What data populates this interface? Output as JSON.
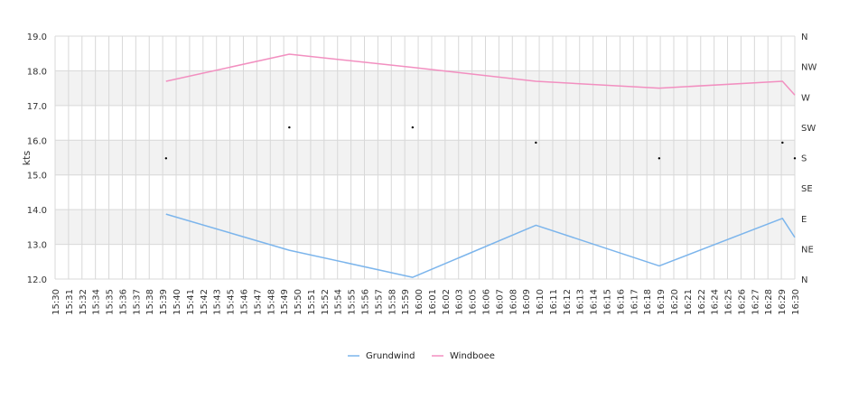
{
  "chart_data": {
    "type": "line",
    "ylabel": "kts",
    "ylim": [
      12,
      19
    ],
    "y_ticks": [
      "12.0",
      "13.0",
      "14.0",
      "15.0",
      "16.0",
      "17.0",
      "18.0",
      "19.0"
    ],
    "y2_labels": [
      "N",
      "NE",
      "E",
      "SE",
      "S",
      "SW",
      "W",
      "NW",
      "N"
    ],
    "x_tick_labels": [
      "15:30",
      "15:31",
      "15:32",
      "15:34",
      "15:35",
      "15:36",
      "15:37",
      "15:38",
      "15:39",
      "15:40",
      "15:41",
      "15:42",
      "15:43",
      "15:45",
      "15:46",
      "15:47",
      "15:48",
      "15:49",
      "15:50",
      "15:51",
      "15:52",
      "15:54",
      "15:55",
      "15:56",
      "15:57",
      "15:58",
      "15:59",
      "16:00",
      "16:01",
      "16:02",
      "16:03",
      "16:05",
      "16:06",
      "16:07",
      "16:08",
      "16:09",
      "16:10",
      "16:11",
      "16:12",
      "16:13",
      "16:14",
      "16:15",
      "16:16",
      "16:17",
      "16:18",
      "16:19",
      "16:20",
      "16:21",
      "16:22",
      "16:24",
      "16:25",
      "16:26",
      "16:27",
      "16:28",
      "16:29",
      "16:30"
    ],
    "x_range_min": [
      0,
      60
    ],
    "grid": true,
    "legend_position": "bottom",
    "series": [
      {
        "name": "Grundwind",
        "color": "#7cb5ec",
        "points": [
          [
            9,
            13.87
          ],
          [
            19,
            12.83
          ],
          [
            29,
            12.05
          ],
          [
            39,
            13.55
          ],
          [
            49,
            12.38
          ],
          [
            59,
            13.75
          ],
          [
            60,
            13.2
          ]
        ]
      },
      {
        "name": "Windboee",
        "color": "#f28fc0",
        "points": [
          [
            9,
            17.7
          ],
          [
            19,
            18.48
          ],
          [
            29,
            18.1
          ],
          [
            39,
            17.7
          ],
          [
            49,
            17.5
          ],
          [
            59,
            17.7
          ],
          [
            60,
            17.3
          ]
        ]
      }
    ],
    "direction_markers": [
      [
        9,
        15.48
      ],
      [
        19,
        16.37
      ],
      [
        29,
        16.37
      ],
      [
        39,
        15.93
      ],
      [
        49,
        15.48
      ],
      [
        59,
        15.93
      ],
      [
        60,
        15.48
      ]
    ]
  }
}
